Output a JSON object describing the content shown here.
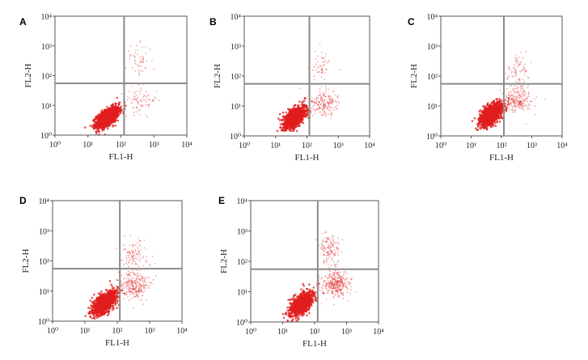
{
  "figure": {
    "x_tick_labels": [
      "10⁰",
      "10¹",
      "10²",
      "10³",
      "10⁴"
    ],
    "y_tick_labels": [
      "10⁰",
      "10¹",
      "10²",
      "10³",
      "10⁴"
    ],
    "point_color": "#e01e1e",
    "gate_color": "#8a8a8a"
  },
  "chart_data": [
    {
      "type": "scatter",
      "panel": "A",
      "xlabel": "FL1-H",
      "ylabel": "FL2-H",
      "xscale": "log",
      "yscale": "log",
      "xlim": [
        1,
        10000
      ],
      "ylim": [
        1,
        10000
      ],
      "grid": false,
      "quadrant_gate": {
        "x": 125,
        "y": 55
      },
      "clusters": [
        {
          "region": "lower-left",
          "center": [
            40,
            4
          ],
          "spread": [
            0.17,
            0.14
          ],
          "share": 0.9
        },
        {
          "region": "lower-right",
          "center": [
            400,
            15
          ],
          "spread": [
            0.25,
            0.22
          ],
          "share": 0.06
        },
        {
          "region": "upper-right",
          "center": [
            350,
            350
          ],
          "spread": [
            0.2,
            0.25
          ],
          "share": 0.04
        }
      ],
      "quadrant_percent": {
        "upper-left": 0.2,
        "upper-right": 4.0,
        "lower-left": 89.8,
        "lower-right": 6.0
      }
    },
    {
      "type": "scatter",
      "panel": "B",
      "xlabel": "FL1-H",
      "ylabel": "FL2-H",
      "xscale": "log",
      "yscale": "log",
      "xlim": [
        1,
        10000
      ],
      "ylim": [
        1,
        10000
      ],
      "grid": false,
      "quadrant_gate": {
        "x": 120,
        "y": 55
      },
      "clusters": [
        {
          "region": "lower-left",
          "center": [
            40,
            4
          ],
          "spread": [
            0.17,
            0.15
          ],
          "share": 0.83
        },
        {
          "region": "lower-right",
          "center": [
            350,
            12
          ],
          "spread": [
            0.22,
            0.2
          ],
          "share": 0.13
        },
        {
          "region": "upper-right",
          "center": [
            300,
            200
          ],
          "spread": [
            0.2,
            0.28
          ],
          "share": 0.04
        }
      ],
      "quadrant_percent": {
        "upper-left": 0.3,
        "upper-right": 3.7,
        "lower-left": 83.0,
        "lower-right": 13.0
      }
    },
    {
      "type": "scatter",
      "panel": "C",
      "xlabel": "FL1-H",
      "ylabel": "FL2-H",
      "xscale": "log",
      "yscale": "log",
      "xlim": [
        1,
        10000
      ],
      "ylim": [
        1,
        10000
      ],
      "grid": false,
      "quadrant_gate": {
        "x": 120,
        "y": 55
      },
      "clusters": [
        {
          "region": "lower-left",
          "center": [
            45,
            5
          ],
          "spread": [
            0.18,
            0.16
          ],
          "share": 0.78
        },
        {
          "region": "lower-right",
          "center": [
            350,
            15
          ],
          "spread": [
            0.22,
            0.22
          ],
          "share": 0.16
        },
        {
          "region": "upper-right",
          "center": [
            350,
            150
          ],
          "spread": [
            0.18,
            0.3
          ],
          "share": 0.06
        }
      ],
      "quadrant_percent": {
        "upper-left": 0.4,
        "upper-right": 5.6,
        "lower-left": 78.0,
        "lower-right": 16.0
      }
    },
    {
      "type": "scatter",
      "panel": "D",
      "xlabel": "FL1-H",
      "ylabel": "FL2-H",
      "xscale": "log",
      "yscale": "log",
      "xlim": [
        1,
        10000
      ],
      "ylim": [
        1,
        10000
      ],
      "grid": false,
      "quadrant_gate": {
        "x": 120,
        "y": 55
      },
      "clusters": [
        {
          "region": "lower-left",
          "center": [
            40,
            4
          ],
          "spread": [
            0.18,
            0.16
          ],
          "share": 0.72
        },
        {
          "region": "lower-right",
          "center": [
            350,
            15
          ],
          "spread": [
            0.24,
            0.22
          ],
          "share": 0.2
        },
        {
          "region": "upper-right",
          "center": [
            350,
            150
          ],
          "spread": [
            0.2,
            0.3
          ],
          "share": 0.08
        }
      ],
      "quadrant_percent": {
        "upper-left": 0.5,
        "upper-right": 7.5,
        "lower-left": 72.0,
        "lower-right": 20.0
      }
    },
    {
      "type": "scatter",
      "panel": "E",
      "xlabel": "FL1-H",
      "ylabel": "FL2-H",
      "xscale": "log",
      "yscale": "log",
      "xlim": [
        1,
        10000
      ],
      "ylim": [
        1,
        10000
      ],
      "grid": false,
      "quadrant_gate": {
        "x": 125,
        "y": 55
      },
      "clusters": [
        {
          "region": "lower-left",
          "center": [
            40,
            4
          ],
          "spread": [
            0.18,
            0.16
          ],
          "share": 0.66
        },
        {
          "region": "lower-right",
          "center": [
            450,
            18
          ],
          "spread": [
            0.22,
            0.22
          ],
          "share": 0.24
        },
        {
          "region": "upper-right",
          "center": [
            300,
            250
          ],
          "spread": [
            0.18,
            0.28
          ],
          "share": 0.1
        }
      ],
      "quadrant_percent": {
        "upper-left": 0.5,
        "upper-right": 9.5,
        "lower-left": 66.0,
        "lower-right": 24.0
      }
    }
  ]
}
